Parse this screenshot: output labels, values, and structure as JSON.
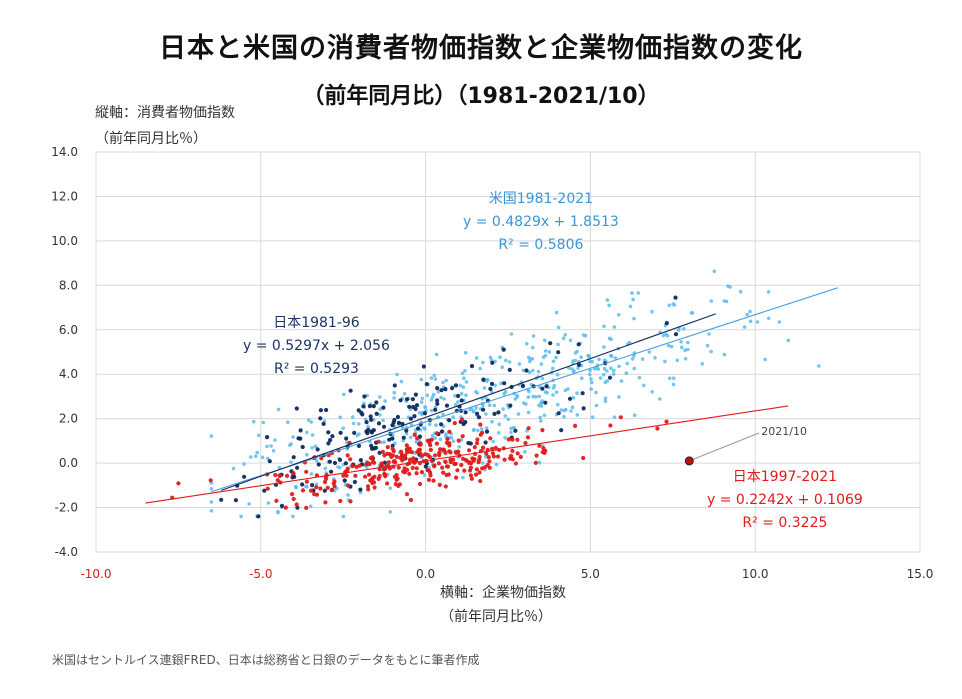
{
  "title": "日本と米国の消費者物価指数と企業物価指数の変化",
  "subtitle": "（前年同月比）（1981-2021/10）",
  "y_axis_title_1": "縦軸：消費者物価指数",
  "y_axis_title_2": "（前年同月比％）",
  "x_axis_title_1": "横軸：企業物価指数",
  "x_axis_title_2": "（前年同月比％）",
  "source_note": "米国はセントルイス連銀FRED、日本は総務省と日銀のデータをもとに筆者作成",
  "colors": {
    "us": "#5bbcec",
    "jp_early": "#0d2a5c",
    "jp_late": "#e11a1a",
    "grid": "#d9d9d9"
  },
  "chart_data": {
    "type": "scatter",
    "xlim": [
      -10,
      15
    ],
    "ylim": [
      -4,
      14
    ],
    "x_ticks": [
      "-10.0",
      "-5.0",
      "0.0",
      "5.0",
      "10.0",
      "15.0"
    ],
    "y_ticks": [
      "-4.0",
      "-2.0",
      "0.0",
      "2.0",
      "4.0",
      "6.0",
      "8.0",
      "10.0",
      "12.0",
      "14.0"
    ],
    "xlabel": "横軸：企業物価指数（前年同月比％）",
    "ylabel": "縦軸：消費者物価指数（前年同月比％）",
    "series": [
      {
        "name": "米国1981-2021",
        "color": "#5bbcec",
        "equation": "y = 0.4829x + 1.8513",
        "r2": "R² = 0.5806",
        "trend": {
          "slope": 0.4829,
          "intercept": 1.8513,
          "x_range": [
            -6.5,
            12.5
          ]
        },
        "approx_x_range": [
          -6.5,
          12.5
        ],
        "approx_point_count": 500
      },
      {
        "name": "日本1981-96",
        "color": "#0d2a5c",
        "equation": "y = 0.5297x + 2.056",
        "r2": "R² = 0.5293",
        "trend": {
          "slope": 0.5297,
          "intercept": 2.056,
          "x_range": [
            -6.2,
            8.8
          ]
        },
        "approx_x_range": [
          -6.2,
          8.0
        ],
        "approx_point_count": 190
      },
      {
        "name": "日本1997-2021",
        "color": "#e11a1a",
        "equation": "y = 0.2242x + 0.1069",
        "r2": "R² = 0.3225",
        "trend": {
          "slope": 0.2242,
          "intercept": 0.1069,
          "x_range": [
            -8.5,
            11.0
          ]
        },
        "approx_x_range": [
          -8.5,
          7.5
        ],
        "approx_point_count": 300
      }
    ],
    "highlight": {
      "label": "2021/10",
      "x": 8.0,
      "y": 0.1
    }
  }
}
